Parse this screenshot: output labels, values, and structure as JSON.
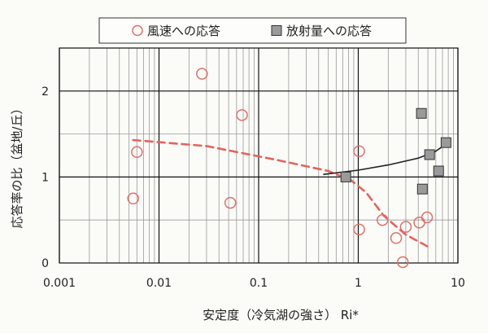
{
  "chart_data": {
    "type": "scatter",
    "x_scale": "log",
    "xlim": [
      0.001,
      10
    ],
    "ylim": [
      0,
      2.5
    ],
    "x_ticks": [
      {
        "value": 0.001,
        "label": "0.001"
      },
      {
        "value": 0.01,
        "label": "0.01"
      },
      {
        "value": 0.1,
        "label": "0.1"
      },
      {
        "value": 1,
        "label": "1"
      },
      {
        "value": 10,
        "label": "10"
      }
    ],
    "y_ticks": [
      {
        "value": 0,
        "label": "0"
      },
      {
        "value": 1,
        "label": "1"
      },
      {
        "value": 2,
        "label": "2"
      }
    ],
    "xlabel": "安定度（冷気湖の強さ） Ri*",
    "ylabel": "応答率の比（盆地/丘）",
    "grid": true,
    "legend_position": "top",
    "colors": {
      "wind_marker": "#e0706a",
      "wind_trend": "#e4645c",
      "radiation_marker_fill": "#9a9a9a",
      "radiation_marker_stroke": "#333333",
      "radiation_trend": "#222222"
    },
    "series": [
      {
        "name": "風速への応答",
        "marker": "open-circle",
        "points": [
          {
            "x": 0.0055,
            "y": 0.75
          },
          {
            "x": 0.006,
            "y": 1.29
          },
          {
            "x": 0.027,
            "y": 2.2
          },
          {
            "x": 0.052,
            "y": 0.7
          },
          {
            "x": 0.068,
            "y": 1.72
          },
          {
            "x": 1.02,
            "y": 1.3
          },
          {
            "x": 1.02,
            "y": 0.39
          },
          {
            "x": 1.75,
            "y": 0.5
          },
          {
            "x": 2.4,
            "y": 0.29
          },
          {
            "x": 2.8,
            "y": 0.01
          },
          {
            "x": 3.0,
            "y": 0.42
          },
          {
            "x": 4.1,
            "y": 0.47
          },
          {
            "x": 4.9,
            "y": 0.53
          }
        ]
      },
      {
        "name": "放射量への応答",
        "marker": "filled-square",
        "points": [
          {
            "x": 0.75,
            "y": 1.0
          },
          {
            "x": 4.3,
            "y": 1.74
          },
          {
            "x": 4.4,
            "y": 0.86
          },
          {
            "x": 5.2,
            "y": 1.26
          },
          {
            "x": 6.4,
            "y": 1.07
          },
          {
            "x": 7.6,
            "y": 1.4
          }
        ]
      }
    ],
    "trend_lines": [
      {
        "series": "風速への応答",
        "style": "dashed",
        "points": [
          {
            "x": 0.0055,
            "y": 1.43
          },
          {
            "x": 0.03,
            "y": 1.36
          },
          {
            "x": 0.15,
            "y": 1.2
          },
          {
            "x": 0.5,
            "y": 1.07
          },
          {
            "x": 0.85,
            "y": 0.96
          },
          {
            "x": 1.2,
            "y": 0.82
          },
          {
            "x": 1.8,
            "y": 0.55
          },
          {
            "x": 3.0,
            "y": 0.33
          },
          {
            "x": 5.2,
            "y": 0.18
          }
        ]
      },
      {
        "series": "放射量への応答",
        "style": "solid",
        "points": [
          {
            "x": 0.45,
            "y": 1.03
          },
          {
            "x": 1.0,
            "y": 1.08
          },
          {
            "x": 2.0,
            "y": 1.14
          },
          {
            "x": 4.0,
            "y": 1.22
          },
          {
            "x": 6.0,
            "y": 1.3
          },
          {
            "x": 8.0,
            "y": 1.4
          }
        ]
      }
    ]
  }
}
